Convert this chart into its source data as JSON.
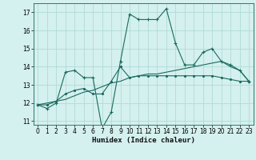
{
  "xlabel": "Humidex (Indice chaleur)",
  "background_color": "#d4f0ef",
  "grid_color": "#b0dbd8",
  "line_color": "#1a6b5e",
  "xlim": [
    -0.5,
    23.5
  ],
  "ylim": [
    10.8,
    17.5
  ],
  "yticks": [
    11,
    12,
    13,
    14,
    15,
    16,
    17
  ],
  "xtick_labels": [
    "0",
    "1",
    "2",
    "3",
    "4",
    "5",
    "6",
    "7",
    "8",
    "9",
    "10",
    "11",
    "12",
    "13",
    "14",
    "15",
    "16",
    "17",
    "18",
    "19",
    "20",
    "21",
    "22",
    "23"
  ],
  "series0": [
    11.9,
    11.7,
    12.0,
    13.7,
    13.8,
    13.4,
    13.4,
    10.6,
    11.5,
    14.3,
    16.9,
    16.6,
    16.6,
    16.6,
    17.2,
    15.3,
    14.1,
    14.1,
    14.8,
    15.0,
    14.3,
    14.1,
    13.8,
    13.2
  ],
  "series1": [
    11.9,
    11.9,
    12.1,
    12.5,
    12.7,
    12.8,
    12.5,
    12.5,
    13.2,
    14.0,
    13.4,
    13.5,
    13.5,
    13.5,
    13.5,
    13.5,
    13.5,
    13.5,
    13.5,
    13.5,
    13.4,
    13.3,
    13.2,
    13.2
  ],
  "series2": [
    11.9,
    12.0,
    12.1,
    12.2,
    12.4,
    12.6,
    12.7,
    12.9,
    13.1,
    13.2,
    13.4,
    13.5,
    13.6,
    13.6,
    13.7,
    13.8,
    13.9,
    14.0,
    14.1,
    14.2,
    14.3,
    14.0,
    13.8,
    13.2
  ],
  "figsize": [
    3.2,
    2.0
  ],
  "dpi": 100,
  "tick_fontsize": 5.5,
  "xlabel_fontsize": 6.5
}
